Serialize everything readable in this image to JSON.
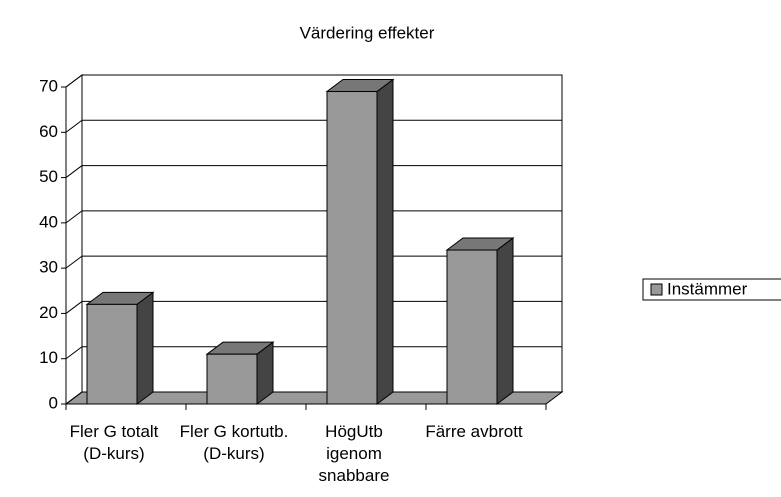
{
  "chart_data": {
    "type": "bar3d",
    "title": "Värdering effekter",
    "categories": [
      "Fler G totalt (D-kurs)",
      "Fler G kortutb.(D-kurs)",
      "HögUtb igenom snabbare",
      "Färre avbrott"
    ],
    "series": [
      {
        "name": "Instämmer",
        "color": "#999999",
        "values": [
          22,
          11,
          69,
          34
        ]
      }
    ],
    "ylim": [
      0,
      70
    ],
    "yticks": [
      0,
      10,
      20,
      30,
      40,
      50,
      60,
      70
    ],
    "grid": true,
    "legend": "right"
  }
}
